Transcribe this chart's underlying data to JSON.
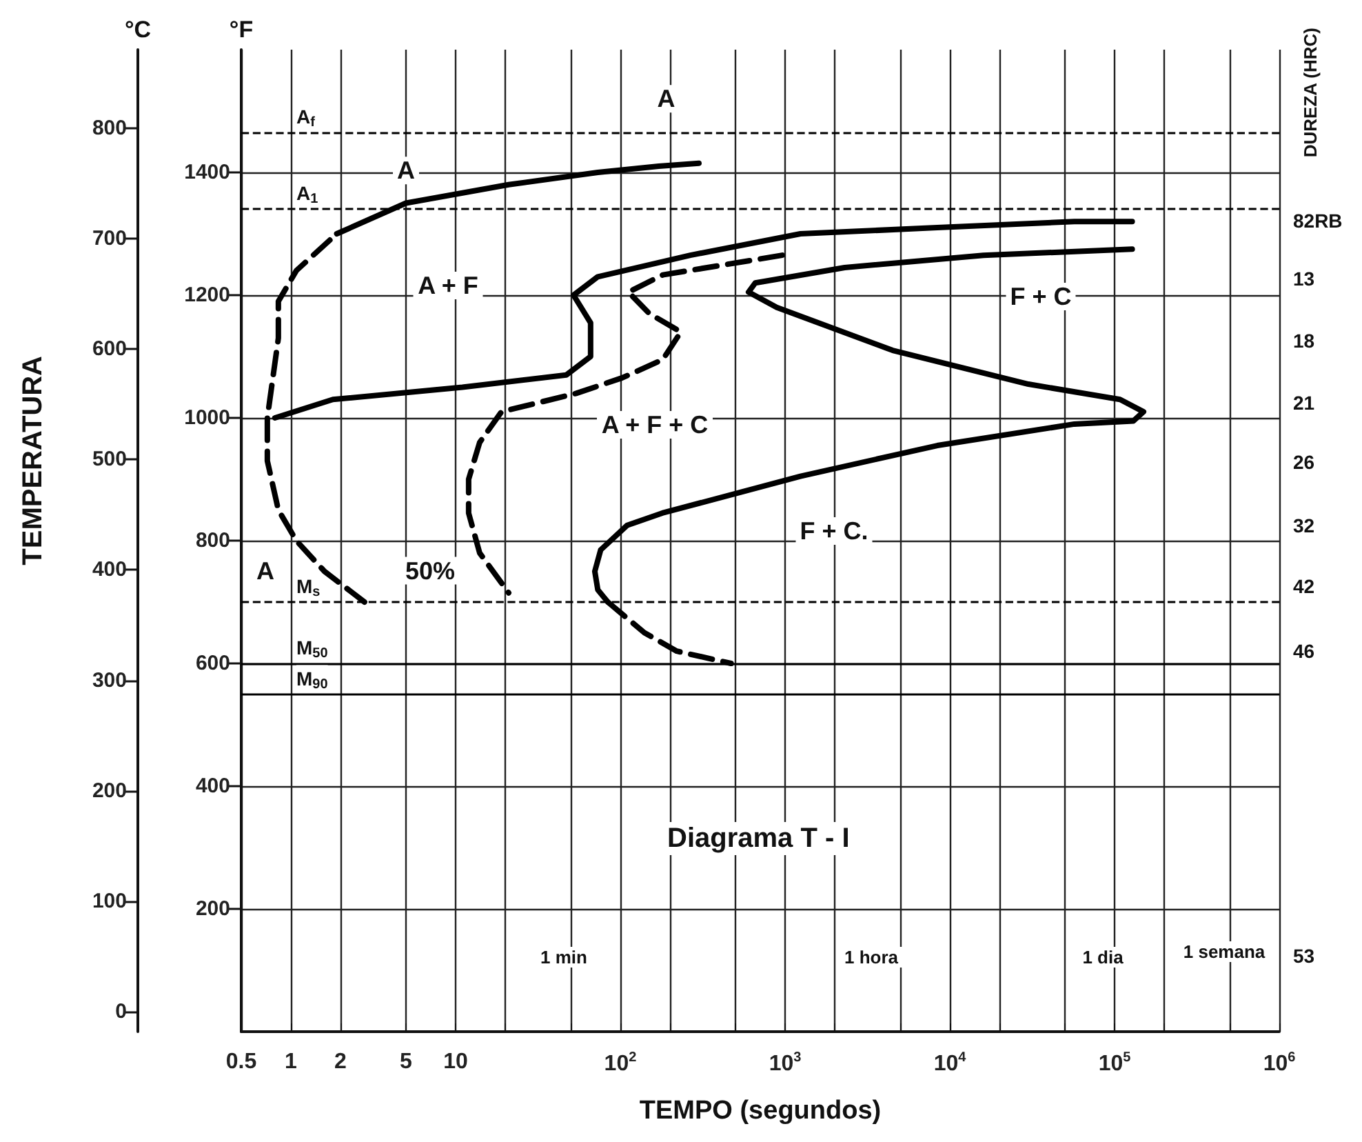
{
  "chart_data": {
    "type": "line",
    "title": "Diagrama T - I",
    "xlabel": "TEMPO (segundos)",
    "ylabel": "°F",
    "y2label": "°C",
    "log": "x",
    "xlim": [
      0.5,
      1000000
    ],
    "ylim": [
      0,
      1600
    ],
    "y2lim": [
      -18,
      871
    ],
    "xticks": [
      0.5,
      1,
      2,
      5,
      10,
      {
        "value": 20,
        "label": null
      },
      {
        "value": 50,
        "label": null
      },
      {
        "value": 100,
        "label": "10$^{2}$"
      },
      {
        "value": 200,
        "label": null
      },
      {
        "value": 500,
        "label": null
      },
      {
        "value": 1000,
        "label": "10$^{3}$"
      },
      {
        "value": 2000,
        "label": null
      },
      {
        "value": 5000,
        "label": null
      },
      {
        "value": 10000,
        "label": "10$^{4}$"
      },
      {
        "value": 20000,
        "label": null
      },
      {
        "value": 50000,
        "label": null
      },
      {
        "value": 100000,
        "label": "10$^{5}$"
      },
      {
        "value": 200000,
        "label": null
      },
      {
        "value": 500000,
        "label": null
      },
      {
        "value": 1000000,
        "label": "10$^{6}$"
      }
    ],
    "yticks": [
      200,
      400,
      600,
      800,
      1000,
      1200,
      1400
    ],
    "y2ticks": [
      0,
      100,
      200,
      300,
      400,
      500,
      600,
      700,
      800
    ],
    "grid": true,
    "marker": "none",
    "series": [
      {
        "color": "#000000",
        "line_style": "dashed",
        "x": [
          2.8,
          1.6,
          1.08,
          0.84,
          0.72,
          0.72,
          0.84,
          0.84,
          1.08,
          1.9
        ],
        "values": [
          700,
          750,
          800,
          850,
          930,
          1000,
          1130,
          1190,
          1240,
          1300
        ]
      },
      {
        "color": "#000000",
        "line_style": "solid",
        "x": [
          1.9,
          5,
          21,
          73,
          171,
          300
        ],
        "values": [
          1300,
          1350,
          1380,
          1400,
          1410,
          1415
        ]
      },
      {
        "color": "#000000",
        "line_style": "solid",
        "x": [
          0.8,
          1.8,
          11,
          47,
          66,
          66,
          52,
          73,
          266,
          1240,
          8400,
          57000,
          128000
        ],
        "values": [
          1000,
          1030,
          1050,
          1070,
          1100,
          1155,
          1200,
          1230,
          1265,
          1300,
          1310,
          1320,
          1320
        ]
      },
      {
        "color": "#000000",
        "line_style": "dashed",
        "x": [
          960,
          181,
          112,
          150,
          233,
          181,
          102,
          54,
          19,
          14,
          12,
          12,
          14,
          21
        ],
        "values": [
          1265,
          1233,
          1205,
          1170,
          1140,
          1095,
          1065,
          1040,
          1010,
          960,
          900,
          845,
          780,
          715
        ]
      },
      {
        "color": "#000000",
        "line_style": "solid",
        "x": [
          128000,
          16000,
          2300,
          660,
          600,
          890,
          4500,
          30000,
          108000,
          150000,
          130000,
          57000,
          8400,
          1240,
          180,
          110,
          76,
          70,
          73,
          84
        ],
        "values": [
          1275,
          1265,
          1245,
          1220,
          1205,
          1180,
          1110,
          1055,
          1030,
          1010,
          995,
          990,
          955,
          905,
          845,
          825,
          785,
          750,
          720,
          700
        ]
      },
      {
        "color": "#000000",
        "line_style": "dashed",
        "x": [
          84,
          140,
          220,
          470
        ],
        "values": [
          700,
          650,
          620,
          600
        ]
      }
    ],
    "ref_lines": [
      {
        "axis": "y",
        "value": 1465,
        "label": "A$_{f}$",
        "line_style": "dashed",
        "color": "#000000"
      },
      {
        "axis": "y",
        "value": 1340,
        "label": "A$_{1}$",
        "line_style": "dashed",
        "color": "#000000"
      },
      {
        "axis": "y",
        "value": 700,
        "label": "M$_{s}$",
        "line_style": "dashed",
        "color": "#000000"
      },
      {
        "axis": "y",
        "value": 600,
        "label": "M$_{50}$",
        "line_style": "solid",
        "color": "#000000"
      },
      {
        "axis": "y",
        "value": 550,
        "label": "M$_{90}$",
        "line_style": "solid",
        "color": "#000000"
      }
    ],
    "annotations": [
      "TEMPERATURA",
      "DUREZA (HRC)",
      "A + F",
      "A + F + C",
      "F + C",
      "F + C.",
      "1 min",
      "1 hora",
      "1 dia",
      "1 semana",
      "82RB",
      "13",
      "18",
      "21",
      "26",
      "32",
      "42",
      "46",
      "53",
      {
        "text": "A",
        "x": 190,
        "y": 1520
      },
      {
        "text": "A",
        "x": 5,
        "y": 1403
      },
      {
        "text": "A",
        "x": 0.7,
        "y": 751
      },
      {
        "text": "50%",
        "x": 7,
        "y": 751
      }
    ]
  }
}
